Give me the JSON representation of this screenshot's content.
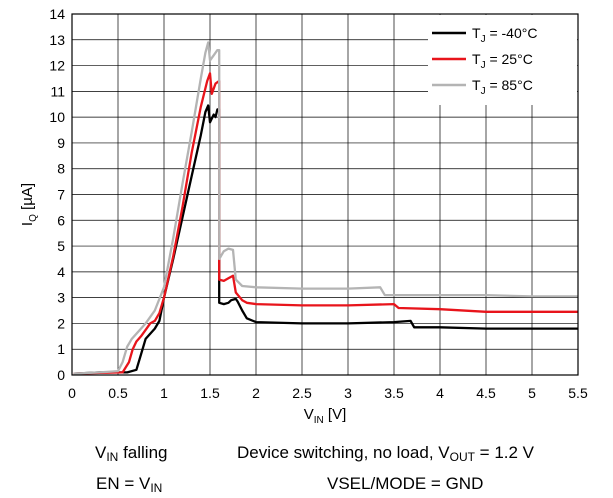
{
  "chart_data": {
    "type": "line",
    "xlabel": {
      "main": "V",
      "sub": "IN",
      "unit": " [V]"
    },
    "ylabel": {
      "main": "I",
      "sub": "Q",
      "unit": " [µA]"
    },
    "xlim": [
      0,
      5.5
    ],
    "ylim": [
      0,
      14
    ],
    "xticks": [
      "0",
      "0.5",
      "1",
      "1.5",
      "2",
      "2.5",
      "3",
      "3.5",
      "4",
      "4.5",
      "5",
      "5.5"
    ],
    "yticks": [
      "0",
      "1",
      "2",
      "3",
      "4",
      "5",
      "6",
      "7",
      "8",
      "9",
      "10",
      "11",
      "12",
      "13",
      "14"
    ],
    "grid": true,
    "legend_position": "top-right",
    "series": [
      {
        "name": "T_J = -40°C",
        "legend": {
          "pre": "T",
          "sub": "J",
          "post": " = -40°C"
        },
        "color": "#000000",
        "points": [
          [
            0.02,
            0.05
          ],
          [
            0.3,
            0.1
          ],
          [
            0.6,
            0.1
          ],
          [
            0.7,
            0.2
          ],
          [
            0.75,
            0.8
          ],
          [
            0.8,
            1.4
          ],
          [
            0.85,
            1.6
          ],
          [
            0.9,
            1.8
          ],
          [
            0.95,
            2.1
          ],
          [
            1.0,
            3.0
          ],
          [
            1.1,
            4.5
          ],
          [
            1.2,
            6.1
          ],
          [
            1.3,
            7.7
          ],
          [
            1.4,
            9.3
          ],
          [
            1.45,
            10.2
          ],
          [
            1.48,
            10.45
          ],
          [
            1.5,
            9.8
          ],
          [
            1.54,
            10.1
          ],
          [
            1.56,
            10.0
          ],
          [
            1.58,
            10.3
          ],
          [
            1.6,
            10.3
          ],
          [
            1.6,
            2.8
          ],
          [
            1.65,
            2.75
          ],
          [
            1.7,
            2.8
          ],
          [
            1.73,
            2.9
          ],
          [
            1.78,
            2.95
          ],
          [
            1.8,
            2.85
          ],
          [
            1.85,
            2.5
          ],
          [
            1.9,
            2.2
          ],
          [
            2.0,
            2.05
          ],
          [
            2.5,
            2.0
          ],
          [
            3.0,
            2.0
          ],
          [
            3.5,
            2.05
          ],
          [
            3.68,
            2.1
          ],
          [
            3.72,
            1.85
          ],
          [
            4.0,
            1.85
          ],
          [
            4.5,
            1.8
          ],
          [
            5.0,
            1.8
          ],
          [
            5.5,
            1.8
          ]
        ]
      },
      {
        "name": "T_J = 25°C",
        "legend": {
          "pre": "T",
          "sub": "J",
          "post": " = 25°C"
        },
        "color": "#e8141b",
        "points": [
          [
            0.02,
            0.05
          ],
          [
            0.3,
            0.08
          ],
          [
            0.55,
            0.1
          ],
          [
            0.62,
            0.5
          ],
          [
            0.66,
            1.0
          ],
          [
            0.7,
            1.3
          ],
          [
            0.75,
            1.5
          ],
          [
            0.8,
            1.75
          ],
          [
            0.85,
            2.0
          ],
          [
            0.9,
            2.1
          ],
          [
            0.95,
            2.4
          ],
          [
            1.0,
            3.0
          ],
          [
            1.1,
            4.6
          ],
          [
            1.2,
            6.5
          ],
          [
            1.3,
            8.6
          ],
          [
            1.4,
            10.4
          ],
          [
            1.47,
            11.4
          ],
          [
            1.5,
            11.7
          ],
          [
            1.52,
            10.9
          ],
          [
            1.56,
            11.3
          ],
          [
            1.6,
            11.4
          ],
          [
            1.6,
            3.7
          ],
          [
            1.65,
            3.65
          ],
          [
            1.7,
            3.75
          ],
          [
            1.75,
            3.85
          ],
          [
            1.78,
            3.2
          ],
          [
            1.85,
            2.9
          ],
          [
            1.9,
            2.8
          ],
          [
            2.0,
            2.75
          ],
          [
            2.5,
            2.7
          ],
          [
            3.0,
            2.7
          ],
          [
            3.5,
            2.75
          ],
          [
            3.55,
            2.6
          ],
          [
            4.0,
            2.55
          ],
          [
            4.5,
            2.45
          ],
          [
            5.0,
            2.45
          ],
          [
            5.5,
            2.45
          ]
        ]
      },
      {
        "name": "T_J = 85°C",
        "legend": {
          "pre": "T",
          "sub": "J",
          "post": " = 85°C"
        },
        "color": "#b4b4b4",
        "points": [
          [
            0.02,
            0.05
          ],
          [
            0.3,
            0.1
          ],
          [
            0.5,
            0.15
          ],
          [
            0.55,
            0.5
          ],
          [
            0.6,
            1.1
          ],
          [
            0.65,
            1.4
          ],
          [
            0.7,
            1.6
          ],
          [
            0.75,
            1.8
          ],
          [
            0.8,
            2.0
          ],
          [
            0.9,
            2.5
          ],
          [
            1.0,
            3.4
          ],
          [
            1.1,
            5.3
          ],
          [
            1.2,
            7.4
          ],
          [
            1.3,
            9.4
          ],
          [
            1.4,
            11.5
          ],
          [
            1.45,
            12.5
          ],
          [
            1.48,
            12.9
          ],
          [
            1.5,
            12.2
          ],
          [
            1.54,
            12.4
          ],
          [
            1.58,
            12.6
          ],
          [
            1.6,
            12.6
          ],
          [
            1.6,
            4.5
          ],
          [
            1.65,
            4.8
          ],
          [
            1.7,
            4.9
          ],
          [
            1.75,
            4.85
          ],
          [
            1.78,
            3.7
          ],
          [
            1.85,
            3.45
          ],
          [
            2.0,
            3.4
          ],
          [
            2.5,
            3.35
          ],
          [
            3.0,
            3.35
          ],
          [
            3.35,
            3.4
          ],
          [
            3.4,
            3.1
          ],
          [
            4.0,
            3.1
          ],
          [
            4.5,
            3.1
          ],
          [
            5.0,
            3.05
          ],
          [
            5.5,
            3.05
          ]
        ]
      }
    ]
  },
  "captions": {
    "cond1": {
      "main": "V",
      "sub": "IN",
      "post": " falling"
    },
    "cond2": {
      "pre": "EN = V",
      "sub": "IN"
    },
    "cond3": {
      "pre": "Device switching, no load, V",
      "sub": "OUT",
      "post": " = 1.2 V"
    },
    "cond4": {
      "text": "VSEL/MODE = GND"
    }
  }
}
